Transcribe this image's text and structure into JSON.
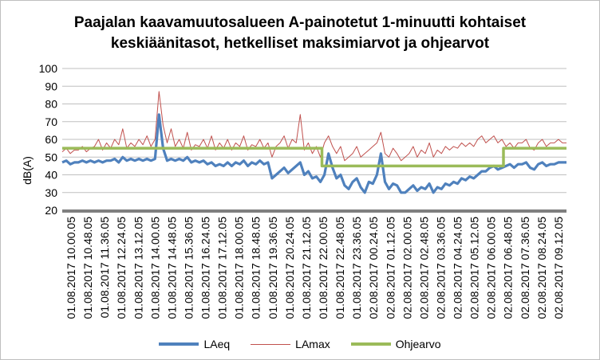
{
  "chart_data": {
    "type": "line",
    "title_line1": "Paajalan kaavamuutosalueen A-painotetut 1-minuutti kohtaiset",
    "title_line2": "keskiäänitasot, hetkelliset maksimiarvot ja ohjearvot",
    "ylabel": "dB(A)",
    "xlabel": "",
    "ylim": [
      20,
      100
    ],
    "y_ticks": [
      20,
      30,
      40,
      50,
      60,
      70,
      80,
      90,
      100
    ],
    "grid": true,
    "legend_position": "bottom",
    "x_ticks": [
      "01.08.2017 10.00.05",
      "01.08.2017 10.48.05",
      "01.08.2017 11.36.05",
      "01.08.2017 12.24.05",
      "01.08.2017 13.12.05",
      "01.08.2017 14.00.05",
      "01.08.2017 14.48.05",
      "01.08.2017 15.36.05",
      "01.08.2017 16.24.05",
      "01.08.2017 17.12.05",
      "01.08.2017 18.00.05",
      "01.08.2017 18.48.05",
      "01.08.2017 19.36.05",
      "01.08.2017 20.24.05",
      "01.08.2017 21.12.05",
      "01.08.2017 22.00.05",
      "01.08.2017 22.48.05",
      "01.08.2017 23.36.05",
      "02.08.2017 00.24.05",
      "02.08.2017 01.12.05",
      "02.08.2017 02.00.05",
      "02.08.2017 02.48.05",
      "02.08.2017 03.36.05",
      "02.08.2017 04.24.05",
      "02.08.2017 05.12.05",
      "02.08.2017 06.00.05",
      "02.08.2017 06.48.05",
      "02.08.2017 07.36.05",
      "02.08.2017 08.24.05",
      "02.08.2017 09.12.05"
    ],
    "series": [
      {
        "name": "LAeq",
        "color": "#4f81bd",
        "values": [
          47,
          48,
          46,
          47,
          47,
          48,
          47,
          48,
          47,
          48,
          47,
          48,
          48,
          49,
          47,
          50,
          48,
          49,
          48,
          49,
          48,
          49,
          48,
          49,
          74,
          55,
          48,
          49,
          48,
          49,
          48,
          50,
          47,
          48,
          47,
          48,
          46,
          47,
          45,
          46,
          45,
          47,
          45,
          47,
          46,
          48,
          45,
          47,
          46,
          48,
          46,
          47,
          38,
          40,
          42,
          44,
          41,
          43,
          45,
          47,
          40,
          42,
          38,
          39,
          36,
          40,
          52,
          44,
          38,
          40,
          34,
          32,
          36,
          38,
          33,
          30,
          36,
          35,
          40,
          52,
          36,
          32,
          35,
          34,
          30,
          30,
          32,
          34,
          31,
          33,
          32,
          35,
          30,
          33,
          32,
          35,
          34,
          36,
          35,
          38,
          37,
          39,
          38,
          40,
          42,
          42,
          44,
          45,
          43,
          44,
          45,
          46,
          44,
          46,
          46,
          47,
          44,
          43,
          46,
          47,
          45,
          46,
          46,
          47,
          47,
          47
        ]
      },
      {
        "name": "LAmax",
        "color": "#c0504d",
        "values": [
          53,
          55,
          52,
          54,
          54,
          56,
          53,
          55,
          56,
          60,
          54,
          58,
          55,
          60,
          57,
          66,
          55,
          58,
          56,
          60,
          57,
          62,
          56,
          60,
          87,
          68,
          58,
          66,
          56,
          60,
          55,
          64,
          54,
          57,
          56,
          60,
          55,
          62,
          54,
          58,
          55,
          60,
          54,
          58,
          56,
          62,
          54,
          57,
          56,
          60,
          55,
          58,
          50,
          56,
          58,
          62,
          55,
          60,
          58,
          74,
          54,
          58,
          52,
          56,
          50,
          58,
          62,
          56,
          52,
          56,
          48,
          50,
          52,
          56,
          50,
          52,
          54,
          56,
          58,
          64,
          52,
          50,
          55,
          52,
          48,
          50,
          52,
          56,
          50,
          54,
          52,
          58,
          50,
          54,
          52,
          56,
          54,
          56,
          55,
          58,
          56,
          58,
          56,
          60,
          62,
          58,
          60,
          62,
          58,
          60,
          56,
          58,
          55,
          58,
          58,
          60,
          55,
          54,
          58,
          60,
          56,
          58,
          58,
          60,
          58,
          58
        ]
      },
      {
        "name": "Ohjearvo",
        "color": "#9bbb59",
        "values": [
          55,
          55,
          45,
          45,
          55,
          55
        ],
        "x_positions": [
          0,
          0.515,
          0.515,
          0.875,
          0.875,
          1.0
        ]
      }
    ]
  }
}
